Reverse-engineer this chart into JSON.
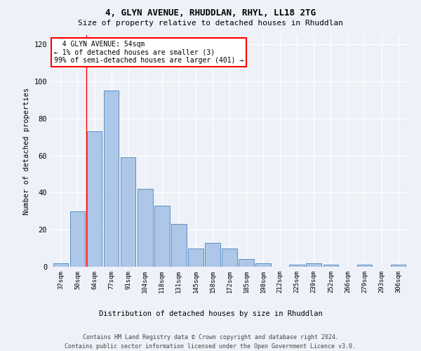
{
  "title1": "4, GLYN AVENUE, RHUDDLAN, RHYL, LL18 2TG",
  "title2": "Size of property relative to detached houses in Rhuddlan",
  "xlabel": "Distribution of detached houses by size in Rhuddlan",
  "ylabel": "Number of detached properties",
  "categories": [
    "37sqm",
    "50sqm",
    "64sqm",
    "77sqm",
    "91sqm",
    "104sqm",
    "118sqm",
    "131sqm",
    "145sqm",
    "158sqm",
    "172sqm",
    "185sqm",
    "198sqm",
    "212sqm",
    "225sqm",
    "239sqm",
    "252sqm",
    "266sqm",
    "279sqm",
    "293sqm",
    "306sqm"
  ],
  "values": [
    2,
    30,
    73,
    95,
    59,
    42,
    33,
    23,
    10,
    13,
    10,
    4,
    2,
    0,
    1,
    2,
    1,
    0,
    1,
    0,
    1
  ],
  "bar_color": "#aec6e8",
  "bar_edge_color": "#5a8fc2",
  "ylim": [
    0,
    125
  ],
  "yticks": [
    0,
    20,
    40,
    60,
    80,
    100,
    120
  ],
  "annotation_text": "  4 GLYN AVENUE: 54sqm\n← 1% of detached houses are smaller (3)\n99% of semi-detached houses are larger (401) →",
  "footer1": "Contains HM Land Registry data © Crown copyright and database right 2024.",
  "footer2": "Contains public sector information licensed under the Open Government Licence v3.0.",
  "background_color": "#eef2f8"
}
